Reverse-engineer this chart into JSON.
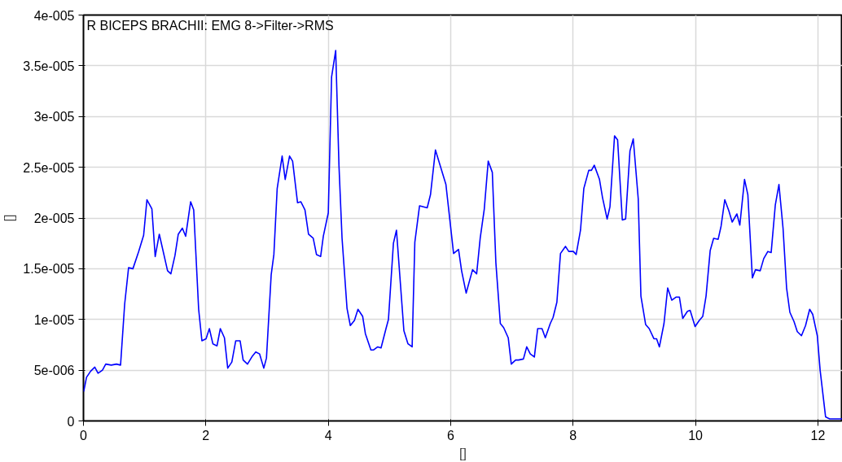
{
  "chart_data": {
    "type": "line",
    "title": "R BICEPS BRACHII: EMG 8->Filter->RMS",
    "xlabel": "[]",
    "ylabel": "[]",
    "xlim": [
      0,
      12.4
    ],
    "ylim": [
      0,
      4e-05
    ],
    "xticks": [
      0,
      2,
      4,
      6,
      8,
      10,
      12
    ],
    "yticks": [
      0,
      {
        "value": 5e-06,
        "label": "5e-006"
      },
      {
        "value": 1e-05,
        "label": "1e-005"
      },
      {
        "value": 1.5e-05,
        "label": "1.5e-005"
      },
      {
        "value": 2e-05,
        "label": "2e-005"
      },
      {
        "value": 2.5e-05,
        "label": "2.5e-005"
      },
      {
        "value": 3e-05,
        "label": "3e-005"
      },
      {
        "value": 3.5e-05,
        "label": "3.5e-005"
      },
      {
        "value": 4e-05,
        "label": "4e-005"
      }
    ],
    "grid": true,
    "marker": "none",
    "line_style": "solid",
    "series": [
      {
        "color": "#0000ff",
        "x": [
          0.004,
          0.05,
          0.117,
          0.185,
          0.238,
          0.31,
          0.364,
          0.454,
          0.539,
          0.606,
          0.673,
          0.737,
          0.808,
          0.902,
          0.983,
          1.037,
          1.118,
          1.172,
          1.239,
          1.374,
          1.428,
          1.495,
          1.549,
          1.616,
          1.67,
          1.751,
          1.801,
          1.882,
          1.935,
          2.003,
          2.057,
          2.114,
          2.182,
          2.236,
          2.303,
          2.357,
          2.424,
          2.488,
          2.559,
          2.609,
          2.68,
          2.761,
          2.815,
          2.878,
          2.946,
          2.99,
          3.067,
          3.111,
          3.165,
          3.246,
          3.296,
          3.367,
          3.417,
          3.498,
          3.552,
          3.619,
          3.677,
          3.754,
          3.807,
          3.875,
          3.919,
          4.0,
          4.054,
          4.121,
          4.175,
          4.225,
          4.306,
          4.36,
          4.427,
          4.485,
          4.562,
          4.606,
          4.696,
          4.741,
          4.808,
          4.862,
          4.943,
          4.983,
          5.064,
          5.114,
          5.235,
          5.302,
          5.37,
          5.414,
          5.491,
          5.616,
          5.67,
          5.751,
          5.922,
          6.047,
          6.128,
          6.178,
          6.253,
          6.357,
          6.424,
          6.482,
          6.549,
          6.613,
          6.68,
          6.738,
          6.811,
          6.865,
          6.94,
          6.99,
          7.061,
          7.107,
          7.188,
          7.242,
          7.3,
          7.367,
          7.421,
          7.492,
          7.546,
          7.627,
          7.673,
          7.735,
          7.794,
          7.875,
          7.929,
          8.004,
          8.05,
          8.121,
          8.175,
          8.256,
          8.3,
          8.346,
          8.431,
          8.481,
          8.556,
          8.602,
          8.677,
          8.727,
          8.804,
          8.858,
          8.929,
          8.983,
          9.064,
          9.108,
          9.185,
          9.243,
          9.32,
          9.364,
          9.41,
          9.485,
          9.545,
          9.612,
          9.68,
          9.737,
          9.791,
          9.868,
          9.912,
          9.993,
          10.061,
          10.118,
          10.172,
          10.24,
          10.296,
          10.37,
          10.418,
          10.478,
          10.545,
          10.599,
          10.676,
          10.724,
          10.801,
          10.855,
          10.929,
          10.98,
          11.057,
          11.115,
          11.182,
          11.236,
          11.304,
          11.363,
          11.43,
          11.488,
          11.542,
          11.609,
          11.663,
          11.731,
          11.798,
          11.865,
          11.915,
          11.99,
          12.036,
          12.125,
          12.193,
          12.4
        ],
        "values": [
          2.9e-06,
          4.3e-06,
          4.9e-06,
          5.3e-06,
          4.7e-06,
          5e-06,
          5.6e-06,
          5.5e-06,
          5.6e-06,
          5.5e-06,
          1.15e-05,
          1.51e-05,
          1.5e-05,
          1.67e-05,
          1.83e-05,
          2.18e-05,
          2.09e-05,
          1.62e-05,
          1.84e-05,
          1.48e-05,
          1.45e-05,
          1.63e-05,
          1.84e-05,
          1.9e-05,
          1.82e-05,
          2.16e-05,
          2.08e-05,
          1.1e-05,
          7.9e-06,
          8.1e-06,
          9.1e-06,
          7.6e-06,
          7.4e-06,
          9.1e-06,
          8.2e-06,
          5.2e-06,
          5.8e-06,
          7.9e-06,
          7.9e-06,
          6e-06,
          5.6e-06,
          6.4e-06,
          6.8e-06,
          6.6e-06,
          5.2e-06,
          6.2e-06,
          1.44e-05,
          1.64e-05,
          2.29e-05,
          2.61e-05,
          2.38e-05,
          2.61e-05,
          2.56e-05,
          2.15e-05,
          2.16e-05,
          2.08e-05,
          1.84e-05,
          1.8e-05,
          1.64e-05,
          1.62e-05,
          1.82e-05,
          2.05e-05,
          3.39e-05,
          3.65e-05,
          2.51e-05,
          1.8e-05,
          1.11e-05,
          9.4e-06,
          9.9e-06,
          1.1e-05,
          1.03e-05,
          8.6e-06,
          7e-06,
          7e-06,
          7.3e-06,
          7.2e-06,
          9.1e-06,
          1e-05,
          1.75e-05,
          1.88e-05,
          8.9e-06,
          7.6e-06,
          7.3e-06,
          1.76e-05,
          2.12e-05,
          2.1e-05,
          2.23e-05,
          2.67e-05,
          2.33e-05,
          1.65e-05,
          1.69e-05,
          1.48e-05,
          1.26e-05,
          1.49e-05,
          1.45e-05,
          1.8e-05,
          2.09e-05,
          2.56e-05,
          2.45e-05,
          1.56e-05,
          9.6e-06,
          9.2e-06,
          8.2e-06,
          5.6e-06,
          6e-06,
          6e-06,
          6.1e-06,
          7.3e-06,
          6.6e-06,
          6.3e-06,
          9.1e-06,
          9.1e-06,
          8.2e-06,
          9.6e-06,
          1.02e-05,
          1.17e-05,
          1.65e-05,
          1.72e-05,
          1.67e-05,
          1.67e-05,
          1.64e-05,
          1.88e-05,
          2.29e-05,
          2.47e-05,
          2.47e-05,
          2.52e-05,
          2.38e-05,
          2.2e-05,
          1.99e-05,
          2.11e-05,
          2.81e-05,
          2.77e-05,
          1.98e-05,
          1.99e-05,
          2.66e-05,
          2.78e-05,
          2.19e-05,
          1.23e-05,
          9.5e-06,
          9.1e-06,
          8.1e-06,
          8.1e-06,
          7.3e-06,
          9.6e-06,
          1.31e-05,
          1.19e-05,
          1.22e-05,
          1.22e-05,
          1.01e-05,
          1.08e-05,
          1.09e-05,
          9.3e-06,
          9.9e-06,
          1.03e-05,
          1.23e-05,
          1.68e-05,
          1.8e-05,
          1.79e-05,
          1.92e-05,
          2.18e-05,
          2.07e-05,
          1.96e-05,
          2.04e-05,
          1.93e-05,
          2.38e-05,
          2.23e-05,
          1.41e-05,
          1.49e-05,
          1.48e-05,
          1.6e-05,
          1.67e-05,
          1.66e-05,
          2.13e-05,
          2.33e-05,
          1.9e-05,
          1.31e-05,
          1.07e-05,
          9.8e-06,
          8.8e-06,
          8.4e-06,
          9.4e-06,
          1.1e-05,
          1.05e-05,
          8.4e-06,
          5e-06,
          4e-07,
          2e-07,
          2e-07
        ]
      }
    ]
  }
}
